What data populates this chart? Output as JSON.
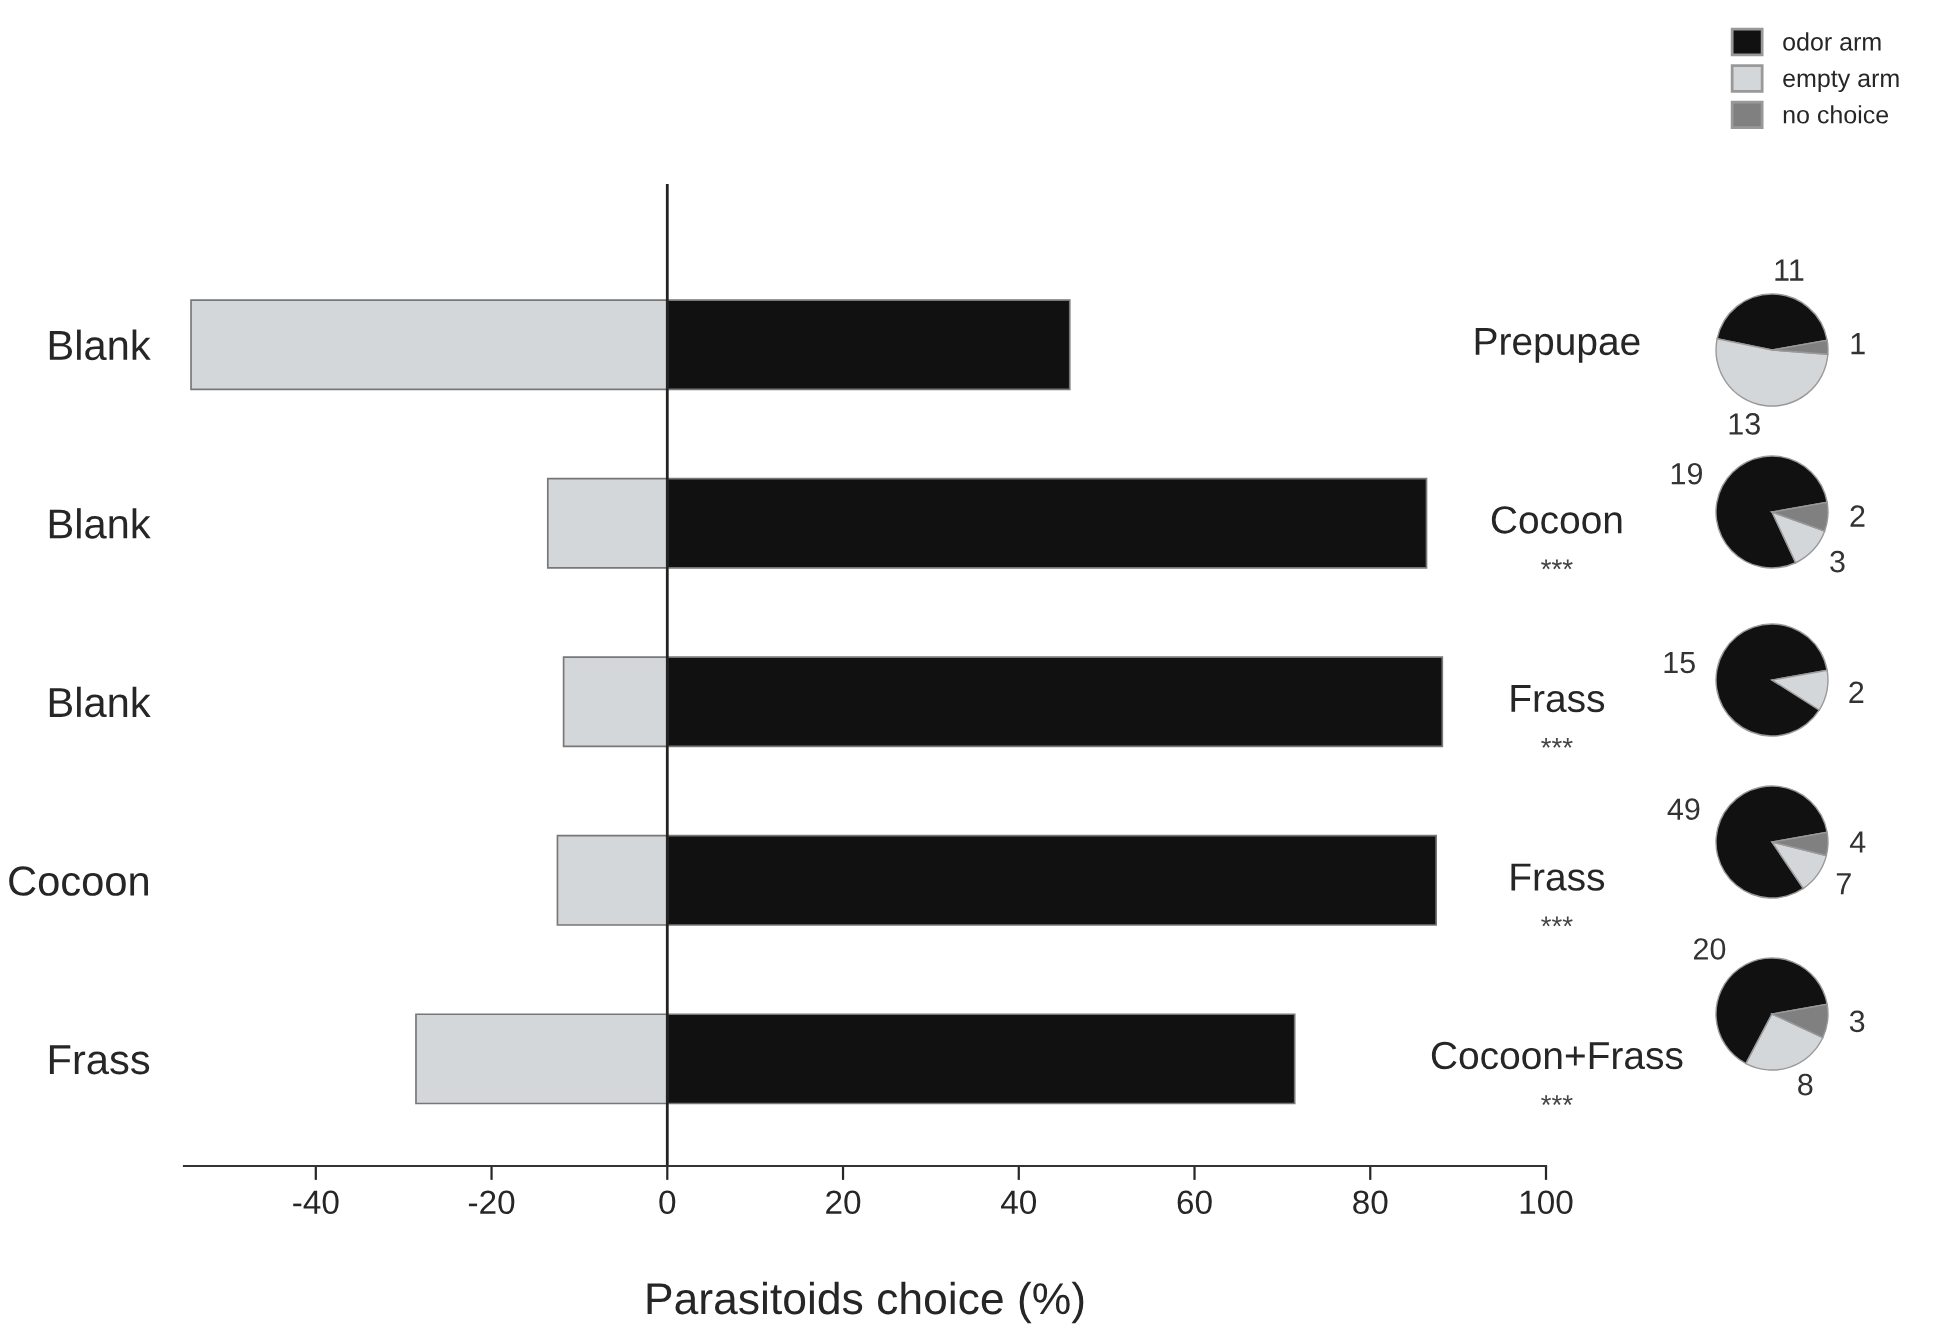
{
  "chart_data": [
    {
      "type": "bar",
      "orientation": "horizontal",
      "xlabel": "Parasitoids choice (%)",
      "categories": [
        "Blank",
        "Blank",
        "Blank",
        "Cocoon",
        "Frass"
      ],
      "y2_categories": [
        "Prepupae",
        "Cocoon\n***",
        "Frass\n***",
        "Frass\n***",
        "Cocoon+Frass\n***"
      ],
      "series": [
        {
          "color": "#111111",
          "values": [
            45.8,
            86.4,
            88.2,
            87.5,
            71.4
          ]
        },
        {
          "color": "#d4d7da",
          "values": [
            -54.2,
            -13.6,
            -11.8,
            -12.5,
            -28.6
          ]
        }
      ],
      "stacked": true,
      "xlim": [
        -55,
        100
      ],
      "xticks": [
        -40,
        -20,
        0,
        20,
        40,
        60,
        80,
        100
      ],
      "ref_lines": [
        {
          "axis": "x",
          "value": 0
        }
      ],
      "grid": false
    },
    {
      "type": "pie",
      "categories": [
        "odor arm",
        "empty arm",
        "no choice"
      ],
      "values": [
        11,
        13,
        1
      ],
      "colors": [
        "#111111",
        "#d4d7da",
        "#808080"
      ],
      "data_labels": true,
      "legend": "top right"
    },
    {
      "type": "pie",
      "categories": [
        null,
        null,
        null
      ],
      "values": [
        19,
        3,
        2
      ],
      "colors": [
        "#111111",
        "#d4d7da",
        "#808080"
      ],
      "data_labels": true
    },
    {
      "type": "pie",
      "categories": [
        null,
        null
      ],
      "values": [
        15,
        2
      ],
      "colors": [
        "#111111",
        "#d4d7da"
      ],
      "data_labels": true
    },
    {
      "type": "pie",
      "categories": [
        null,
        null,
        null
      ],
      "values": [
        49,
        7,
        4
      ],
      "colors": [
        "#111111",
        "#d4d7da",
        "#808080"
      ],
      "data_labels": true
    },
    {
      "type": "pie",
      "categories": [
        null,
        null,
        null
      ],
      "values": [
        20,
        8,
        3
      ],
      "colors": [
        "#111111",
        "#d4d7da",
        "#808080"
      ],
      "data_labels": true
    }
  ]
}
